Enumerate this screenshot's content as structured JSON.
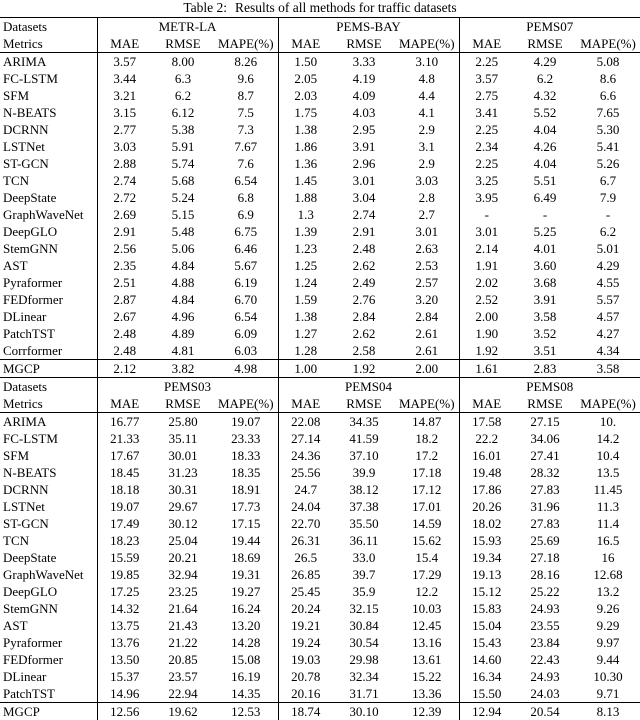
{
  "caption": {
    "number": "Table 2:",
    "title": "Results of all methods for traffic datasets"
  },
  "colors": {
    "text": "#000000",
    "background": "#ffffff",
    "rule": "#000000"
  },
  "table": {
    "sections": [
      {
        "datasets_label": "Datasets",
        "metrics_label": "Metrics",
        "datasets": [
          "METR-LA",
          "PEMS-BAY",
          "PEMS07"
        ],
        "metrics": [
          "MAE",
          "RMSE",
          "MAPE(%)"
        ],
        "rows": [
          {
            "method": "ARIMA",
            "values": [
              "3.57",
              "8.00",
              "8.26",
              "1.50",
              "3.33",
              "3.10",
              "2.25",
              "4.29",
              "5.08"
            ],
            "bold": []
          },
          {
            "method": "FC-LSTM",
            "values": [
              "3.44",
              "6.3",
              "9.6",
              "2.05",
              "4.19",
              "4.8",
              "3.57",
              "6.2",
              "8.6"
            ],
            "bold": []
          },
          {
            "method": "SFM",
            "values": [
              "3.21",
              "6.2",
              "8.7",
              "2.03",
              "4.09",
              "4.4",
              "2.75",
              "4.32",
              "6.6"
            ],
            "bold": []
          },
          {
            "method": "N-BEATS",
            "values": [
              "3.15",
              "6.12",
              "7.5",
              "1.75",
              "4.03",
              "4.1",
              "3.41",
              "5.52",
              "7.65"
            ],
            "bold": []
          },
          {
            "method": "DCRNN",
            "values": [
              "2.77",
              "5.38",
              "7.3",
              "1.38",
              "2.95",
              "2.9",
              "2.25",
              "4.04",
              "5.30"
            ],
            "bold": []
          },
          {
            "method": "LSTNet",
            "values": [
              "3.03",
              "5.91",
              "7.67",
              "1.86",
              "3.91",
              "3.1",
              "2.34",
              "4.26",
              "5.41"
            ],
            "bold": []
          },
          {
            "method": "ST-GCN",
            "values": [
              "2.88",
              "5.74",
              "7.6",
              "1.36",
              "2.96",
              "2.9",
              "2.25",
              "4.04",
              "5.26"
            ],
            "bold": []
          },
          {
            "method": "TCN",
            "values": [
              "2.74",
              "5.68",
              "6.54",
              "1.45",
              "3.01",
              "3.03",
              "3.25",
              "5.51",
              "6.7"
            ],
            "bold": []
          },
          {
            "method": "DeepState",
            "values": [
              "2.72",
              "5.24",
              "6.8",
              "1.88",
              "3.04",
              "2.8",
              "3.95",
              "6.49",
              "7.9"
            ],
            "bold": []
          },
          {
            "method": "GraphWaveNet",
            "values": [
              "2.69",
              "5.15",
              "6.9",
              "1.3",
              "2.74",
              "2.7",
              "-",
              "-",
              "-"
            ],
            "bold": []
          },
          {
            "method": "DeepGLO",
            "values": [
              "2.91",
              "5.48",
              "6.75",
              "1.39",
              "2.91",
              "3.01",
              "3.01",
              "5.25",
              "6.2"
            ],
            "bold": []
          },
          {
            "method": "StemGNN",
            "values": [
              "2.56",
              "5.06",
              "6.46",
              "1.23",
              "2.48",
              "2.63",
              "2.14",
              "4.01",
              "5.01"
            ],
            "bold": []
          },
          {
            "method": "AST",
            "values": [
              "2.35",
              "4.84",
              "5.67",
              "1.25",
              "2.62",
              "2.53",
              "1.91",
              "3.60",
              "4.29"
            ],
            "bold": []
          },
          {
            "method": "Pyraformer",
            "values": [
              "2.51",
              "4.88",
              "6.19",
              "1.24",
              "2.49",
              "2.57",
              "2.02",
              "3.68",
              "4.55"
            ],
            "bold": []
          },
          {
            "method": "FEDformer",
            "values": [
              "2.87",
              "4.84",
              "6.70",
              "1.59",
              "2.76",
              "3.20",
              "2.52",
              "3.91",
              "5.57"
            ],
            "bold": []
          },
          {
            "method": "DLinear",
            "values": [
              "2.67",
              "4.96",
              "6.54",
              "1.38",
              "2.84",
              "2.84",
              "2.00",
              "3.58",
              "4.57"
            ],
            "bold": []
          },
          {
            "method": "PatchTST",
            "values": [
              "2.48",
              "4.89",
              "6.09",
              "1.27",
              "2.62",
              "2.61",
              "1.90",
              "3.52",
              "4.27"
            ],
            "bold": []
          },
          {
            "method": "Corrformer",
            "values": [
              "2.48",
              "4.81",
              "6.03",
              "1.28",
              "2.58",
              "2.61",
              "1.92",
              "3.51",
              "4.34"
            ],
            "bold": []
          },
          {
            "method": "MGCP",
            "values": [
              "2.12",
              "3.82",
              "4.98",
              "1.00",
              "1.92",
              "2.00",
              "1.61",
              "2.83",
              "3.58"
            ],
            "bold": [
              0,
              1,
              2,
              3,
              4,
              5,
              6,
              7,
              8
            ],
            "highlight": true
          }
        ]
      },
      {
        "datasets_label": "Datasets",
        "metrics_label": "Metrics",
        "datasets": [
          "PEMS03",
          "PEMS04",
          "PEMS08"
        ],
        "metrics": [
          "MAE",
          "RMSE",
          "MAPE(%)"
        ],
        "rows": [
          {
            "method": "ARIMA",
            "values": [
              "16.77",
              "25.80",
              "19.07",
              "22.08",
              "34.35",
              "14.87",
              "17.58",
              "27.15",
              "10."
            ],
            "bold": []
          },
          {
            "method": "FC-LSTM",
            "values": [
              "21.33",
              "35.11",
              "23.33",
              "27.14",
              "41.59",
              "18.2",
              "22.2",
              "34.06",
              "14.2"
            ],
            "bold": []
          },
          {
            "method": "SFM",
            "values": [
              "17.67",
              "30.01",
              "18.33",
              "24.36",
              "37.10",
              "17.2",
              "16.01",
              "27.41",
              "10.4"
            ],
            "bold": []
          },
          {
            "method": "N-BEATS",
            "values": [
              "18.45",
              "31.23",
              "18.35",
              "25.56",
              "39.9",
              "17.18",
              "19.48",
              "28.32",
              "13.5"
            ],
            "bold": []
          },
          {
            "method": "DCRNN",
            "values": [
              "18.18",
              "30.31",
              "18.91",
              "24.7",
              "38.12",
              "17.12",
              "17.86",
              "27.83",
              "11.45"
            ],
            "bold": []
          },
          {
            "method": "LSTNet",
            "values": [
              "19.07",
              "29.67",
              "17.73",
              "24.04",
              "37.38",
              "17.01",
              "20.26",
              "31.96",
              "11.3"
            ],
            "bold": []
          },
          {
            "method": "ST-GCN",
            "values": [
              "17.49",
              "30.12",
              "17.15",
              "22.70",
              "35.50",
              "14.59",
              "18.02",
              "27.83",
              "11.4"
            ],
            "bold": []
          },
          {
            "method": "TCN",
            "values": [
              "18.23",
              "25.04",
              "19.44",
              "26.31",
              "36.11",
              "15.62",
              "15.93",
              "25.69",
              "16.5"
            ],
            "bold": []
          },
          {
            "method": "DeepState",
            "values": [
              "15.59",
              "20.21",
              "18.69",
              "26.5",
              "33.0",
              "15.4",
              "19.34",
              "27.18",
              "16"
            ],
            "bold": []
          },
          {
            "method": "GraphWaveNet",
            "values": [
              "19.85",
              "32.94",
              "19.31",
              "26.85",
              "39.7",
              "17.29",
              "19.13",
              "28.16",
              "12.68"
            ],
            "bold": []
          },
          {
            "method": "DeepGLO",
            "values": [
              "17.25",
              "23.25",
              "19.27",
              "25.45",
              "35.9",
              "12.2",
              "15.12",
              "25.22",
              "13.2"
            ],
            "bold": []
          },
          {
            "method": "StemGNN",
            "values": [
              "14.32",
              "21.64",
              "16.24",
              "20.24",
              "32.15",
              "10.03",
              "15.83",
              "24.93",
              "9.26"
            ],
            "bold": [
              5
            ]
          },
          {
            "method": "AST",
            "values": [
              "13.75",
              "21.43",
              "13.20",
              "19.21",
              "30.84",
              "12.45",
              "15.04",
              "23.55",
              "9.29"
            ],
            "bold": []
          },
          {
            "method": "Pyraformer",
            "values": [
              "13.76",
              "21.22",
              "14.28",
              "19.24",
              "30.54",
              "13.16",
              "15.43",
              "23.84",
              "9.97"
            ],
            "bold": []
          },
          {
            "method": "FEDformer",
            "values": [
              "13.50",
              "20.85",
              "15.08",
              "19.03",
              "29.98",
              "13.61",
              "14.60",
              "22.43",
              "9.44"
            ],
            "bold": [
              4
            ]
          },
          {
            "method": "DLinear",
            "values": [
              "15.37",
              "23.57",
              "16.19",
              "20.78",
              "32.34",
              "15.22",
              "16.34",
              "24.93",
              "10.30"
            ],
            "bold": []
          },
          {
            "method": "PatchTST",
            "values": [
              "14.96",
              "22.94",
              "14.35",
              "20.16",
              "31.71",
              "13.36",
              "15.50",
              "24.03",
              "9.71"
            ],
            "bold": []
          },
          {
            "method": "MGCP",
            "values": [
              "12.56",
              "19.62",
              "12.53",
              "18.74",
              "30.10",
              "12.39",
              "12.94",
              "20.54",
              "8.13"
            ],
            "bold": [
              0,
              1,
              2,
              3,
              6,
              7,
              8
            ],
            "highlight": true
          }
        ]
      }
    ]
  }
}
